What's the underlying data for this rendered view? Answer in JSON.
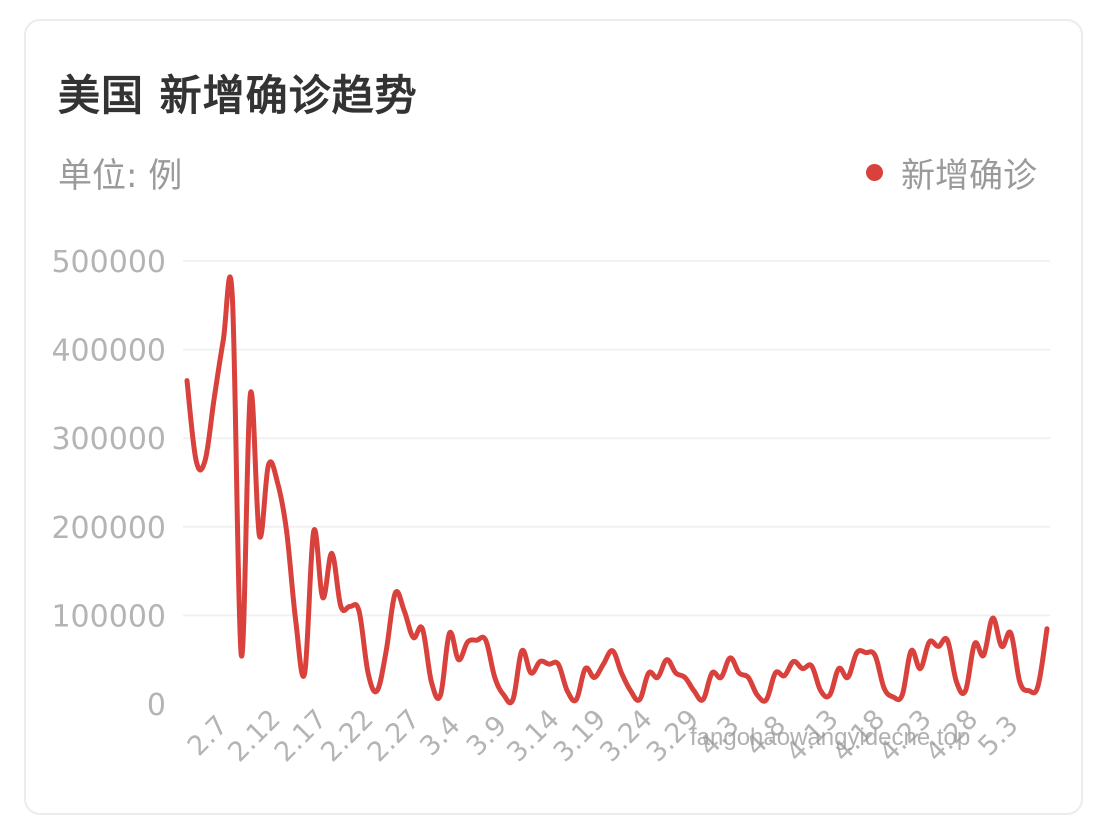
{
  "header": {
    "title": "美国 新增确诊趋势",
    "unit": "单位: 例"
  },
  "watermark": "fangohaowangyidecne.top",
  "colors": {
    "series": "#d9413c",
    "axis_text": "#b4b4b4",
    "grid": "#f1f1f1"
  },
  "chart_data": {
    "type": "line",
    "title": "美国 新增确诊趋势",
    "ylabel": "单位: 例",
    "ylim": [
      0,
      500000
    ],
    "yticks": [
      "0",
      "100000",
      "200000",
      "300000",
      "400000",
      "500000"
    ],
    "xticks": [
      "2.7",
      "2.12",
      "2.17",
      "2.22",
      "2.27",
      "3.4",
      "3.9",
      "3.14",
      "3.19",
      "3.24",
      "3.29",
      "4.3",
      "4.8",
      "4.13",
      "4.18",
      "4.23",
      "4.28",
      "5.3"
    ],
    "grid": true,
    "legend_position": "top-right",
    "series": [
      {
        "name": "新增确诊",
        "values": [
          365000,
          275000,
          275000,
          345000,
          410000,
          460000,
          55000,
          350000,
          190000,
          270000,
          250000,
          195000,
          95000,
          35000,
          195000,
          120000,
          170000,
          110000,
          110000,
          105000,
          35000,
          15000,
          60000,
          125000,
          105000,
          75000,
          85000,
          25000,
          10000,
          80000,
          50000,
          70000,
          72000,
          72000,
          30000,
          10000,
          5000,
          60000,
          35000,
          48000,
          45000,
          45000,
          15000,
          5000,
          40000,
          30000,
          45000,
          60000,
          35000,
          15000,
          5000,
          35000,
          30000,
          50000,
          35000,
          30000,
          15000,
          5000,
          35000,
          30000,
          52000,
          35000,
          30000,
          10000,
          5000,
          35000,
          32000,
          48000,
          40000,
          43000,
          15000,
          10000,
          40000,
          30000,
          58000,
          58000,
          55000,
          18000,
          8000,
          10000,
          60000,
          40000,
          70000,
          65000,
          72000,
          25000,
          15000,
          68000,
          55000,
          97000,
          65000,
          80000,
          25000,
          15000,
          20000,
          85000
        ]
      }
    ]
  }
}
